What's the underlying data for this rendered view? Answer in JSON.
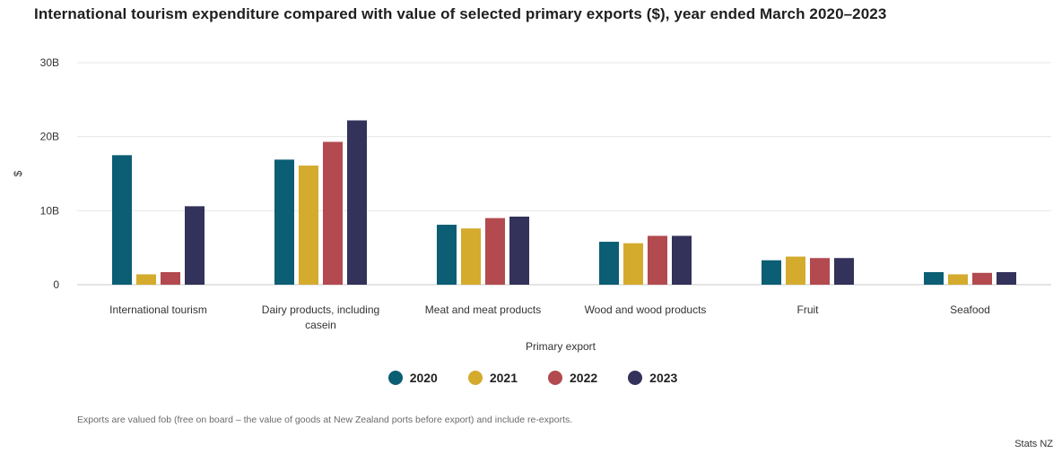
{
  "title": "International tourism expenditure compared with value of selected primary exports ($), year ended March 2020–2023",
  "chart_data": {
    "type": "bar",
    "xlabel": "Primary export",
    "ylabel": "$",
    "ylim": [
      0,
      30
    ],
    "yticks": [
      {
        "value": 0,
        "label": "0"
      },
      {
        "value": 10,
        "label": "10B"
      },
      {
        "value": 20,
        "label": "20B"
      },
      {
        "value": 30,
        "label": "30B"
      }
    ],
    "categories": [
      [
        "International tourism"
      ],
      [
        "Dairy products, including",
        "casein"
      ],
      [
        "Meat and meat products"
      ],
      [
        "Wood and wood products"
      ],
      [
        "Fruit"
      ],
      [
        "Seafood"
      ]
    ],
    "series": [
      {
        "name": "2020",
        "color": "#0b5e73",
        "values": [
          17.5,
          16.9,
          8.1,
          5.8,
          3.3,
          1.7
        ]
      },
      {
        "name": "2021",
        "color": "#d4ab2d",
        "values": [
          1.4,
          16.1,
          7.6,
          5.6,
          3.8,
          1.4
        ]
      },
      {
        "name": "2022",
        "color": "#b24a4f",
        "values": [
          1.7,
          19.3,
          9.0,
          6.6,
          3.6,
          1.6
        ]
      },
      {
        "name": "2023",
        "color": "#32325a",
        "values": [
          10.6,
          22.2,
          9.2,
          6.6,
          3.6,
          1.7
        ]
      }
    ],
    "grid": true,
    "legend_position": "bottom"
  },
  "footnote": "Exports are valued fob (free on board – the value of goods at New Zealand ports before export) and include re-exports.",
  "source": "Stats NZ"
}
